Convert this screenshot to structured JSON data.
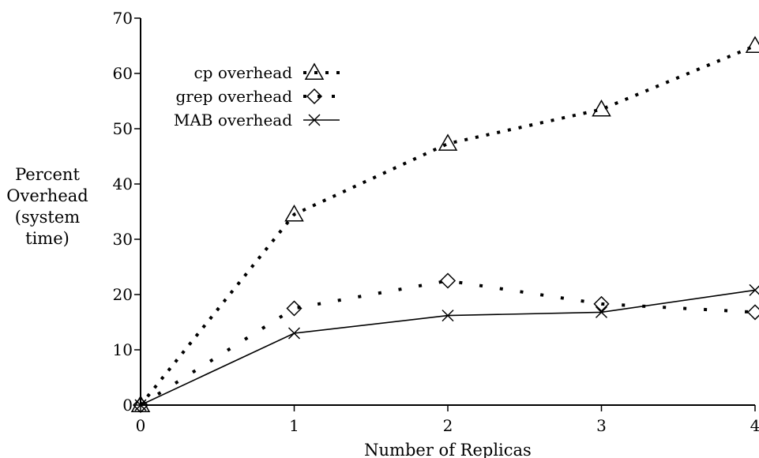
{
  "chart_data": {
    "type": "line",
    "xlabel": "Number of Replicas",
    "ylabel_lines": [
      "Percent",
      "Overhead",
      "(system",
      "time)"
    ],
    "xlim": [
      0,
      4
    ],
    "ylim": [
      0,
      70
    ],
    "x_ticks": [
      0,
      1,
      2,
      3,
      4
    ],
    "y_ticks": [
      0,
      10,
      20,
      30,
      40,
      50,
      60,
      70
    ],
    "grid": false,
    "legend_position": "top-left",
    "x": [
      0,
      1,
      2,
      3,
      4
    ],
    "series": [
      {
        "name": "cp overhead",
        "marker": "triangle",
        "line": "dotted-dense",
        "color": "#000000",
        "values": [
          0,
          34.5,
          47.3,
          53.5,
          65
        ]
      },
      {
        "name": "grep overhead",
        "marker": "diamond",
        "line": "dotted-sparse",
        "color": "#000000",
        "values": [
          0,
          17.5,
          22.5,
          18.3,
          16.8
        ]
      },
      {
        "name": "MAB overhead",
        "marker": "cross",
        "line": "solid",
        "color": "#000000",
        "values": [
          0,
          13,
          16.2,
          16.8,
          20.8
        ]
      }
    ]
  }
}
